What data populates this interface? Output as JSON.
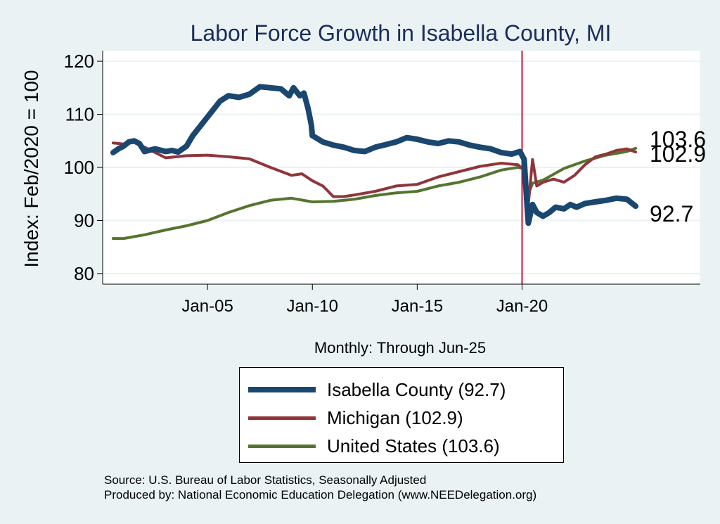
{
  "chart_data": {
    "type": "line",
    "title": "Labor Force Growth in Isabella  County, MI",
    "xlabel": "Monthly: Through Jun-25",
    "ylabel": "Index: Feb/2020 = 100",
    "xlim": [
      2000.0,
      2028.5
    ],
    "ylim": [
      78,
      122
    ],
    "yticks": [
      80,
      90,
      100,
      110,
      120
    ],
    "xticks": [
      {
        "x": 2005.0,
        "label": "Jan-05"
      },
      {
        "x": 2010.0,
        "label": "Jan-10"
      },
      {
        "x": 2015.0,
        "label": "Jan-15"
      },
      {
        "x": 2020.0,
        "label": "Jan-20"
      }
    ],
    "reference_line": {
      "x": 2020.0,
      "color": "#c0143c"
    },
    "grid": "horizontal",
    "legend_position": "bottom",
    "series": [
      {
        "name": "Isabella  County",
        "legend_label": "Isabella  County (92.7)",
        "end_label": "92.7",
        "color": "#1a476f",
        "width": 8,
        "x": [
          2000.5,
          2000.75,
          2001.0,
          2001.25,
          2001.5,
          2001.75,
          2002.0,
          2002.5,
          2003.0,
          2003.3,
          2003.6,
          2004.0,
          2004.3,
          2004.6,
          2005.0,
          2005.3,
          2005.6,
          2006.0,
          2006.5,
          2007.0,
          2007.5,
          2008.0,
          2008.5,
          2008.9,
          2009.1,
          2009.4,
          2009.6,
          2009.8,
          2009.95,
          2010.0,
          2010.5,
          2011.0,
          2011.5,
          2012.0,
          2012.5,
          2013.0,
          2013.5,
          2014.0,
          2014.5,
          2015.0,
          2015.5,
          2016.0,
          2016.5,
          2017.0,
          2017.5,
          2018.0,
          2018.5,
          2019.0,
          2019.5,
          2019.9,
          2020.1,
          2020.2,
          2020.3,
          2020.5,
          2020.7,
          2021.0,
          2021.3,
          2021.6,
          2022.0,
          2022.3,
          2022.6,
          2023.0,
          2023.5,
          2024.0,
          2024.5,
          2025.0,
          2025.42
        ],
        "values": [
          102.8,
          103.5,
          104.0,
          104.8,
          105.0,
          104.5,
          103.0,
          103.5,
          103.0,
          103.2,
          102.9,
          104.0,
          106.0,
          107.5,
          109.5,
          111.0,
          112.5,
          113.5,
          113.2,
          113.8,
          115.2,
          115.0,
          114.8,
          113.5,
          115.0,
          113.5,
          114.0,
          111.0,
          108.0,
          106.0,
          104.8,
          104.2,
          103.8,
          103.2,
          103.0,
          103.8,
          104.3,
          104.8,
          105.6,
          105.3,
          104.8,
          104.5,
          105.0,
          104.8,
          104.2,
          103.8,
          103.5,
          102.8,
          102.5,
          103.0,
          101.5,
          95.0,
          89.5,
          93.0,
          91.5,
          90.8,
          91.5,
          92.5,
          92.2,
          93.0,
          92.5,
          93.2,
          93.5,
          93.8,
          94.2,
          94.0,
          92.7
        ]
      },
      {
        "name": "Michigan",
        "legend_label": "Michigan (102.9)",
        "end_label": "102.9",
        "color": "#90353b",
        "width": 4,
        "x": [
          2000.5,
          2001.0,
          2001.5,
          2002.0,
          2003.0,
          2004.0,
          2005.0,
          2006.0,
          2007.0,
          2008.0,
          2009.0,
          2009.5,
          2010.0,
          2010.5,
          2011.0,
          2011.5,
          2012.0,
          2013.0,
          2014.0,
          2015.0,
          2016.0,
          2017.0,
          2018.0,
          2019.0,
          2019.8,
          2020.1,
          2020.3,
          2020.5,
          2020.7,
          2021.0,
          2021.5,
          2022.0,
          2022.5,
          2023.0,
          2023.5,
          2024.0,
          2024.5,
          2025.0,
          2025.42
        ],
        "values": [
          104.6,
          104.4,
          104.8,
          103.8,
          101.8,
          102.2,
          102.3,
          102.0,
          101.6,
          100.0,
          98.5,
          98.8,
          97.5,
          96.5,
          94.5,
          94.5,
          94.8,
          95.5,
          96.5,
          96.8,
          98.2,
          99.2,
          100.2,
          100.8,
          100.5,
          99.5,
          93.0,
          101.5,
          96.5,
          97.2,
          97.8,
          97.2,
          98.5,
          100.5,
          102.0,
          102.5,
          103.2,
          103.5,
          102.9
        ]
      },
      {
        "name": "United States",
        "legend_label": "United States (103.6)",
        "end_label": "103.6",
        "color": "#55752f",
        "width": 4,
        "x": [
          2000.5,
          2001.0,
          2002.0,
          2003.0,
          2004.0,
          2005.0,
          2006.0,
          2007.0,
          2008.0,
          2009.0,
          2010.0,
          2011.0,
          2012.0,
          2013.0,
          2014.0,
          2015.0,
          2016.0,
          2017.0,
          2018.0,
          2019.0,
          2019.8,
          2020.1,
          2020.3,
          2020.5,
          2021.0,
          2022.0,
          2023.0,
          2024.0,
          2025.0,
          2025.42
        ],
        "values": [
          86.6,
          86.6,
          87.3,
          88.2,
          89.0,
          90.0,
          91.5,
          92.8,
          93.8,
          94.2,
          93.5,
          93.6,
          94.0,
          94.7,
          95.2,
          95.5,
          96.5,
          97.2,
          98.2,
          99.5,
          100.0,
          99.8,
          95.0,
          97.0,
          97.6,
          99.8,
          101.2,
          102.3,
          103.0,
          103.6
        ]
      }
    ]
  },
  "source_line1": "Source: U.S. Bureau of Labor Statistics, Seasonally Adjusted",
  "source_line2": "Produced by: National Economic Education Delegation (www.NEEDelegation.org)"
}
